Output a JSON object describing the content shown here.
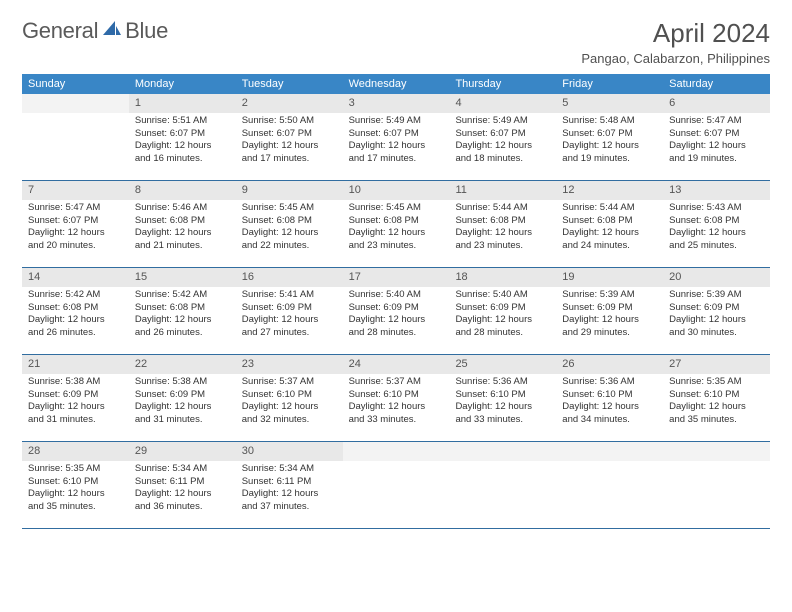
{
  "logo": {
    "word1": "General",
    "word2": "Blue"
  },
  "title": "April 2024",
  "location": "Pangao, Calabarzon, Philippines",
  "colors": {
    "header_bg": "#3986c6",
    "header_text": "#ffffff",
    "daynum_bg": "#e8e8e8",
    "week_border": "#316da0",
    "body_text": "#333333",
    "title_text": "#505050",
    "logo_text": "#5a5a5a",
    "sail_color": "#2f6aa8"
  },
  "fonts": {
    "title_size_pt": 20,
    "location_size_pt": 10,
    "header_size_pt": 8,
    "daynum_size_pt": 8,
    "body_size_pt": 7
  },
  "day_names": [
    "Sunday",
    "Monday",
    "Tuesday",
    "Wednesday",
    "Thursday",
    "Friday",
    "Saturday"
  ],
  "weeks": [
    [
      {
        "n": "",
        "lines": []
      },
      {
        "n": "1",
        "lines": [
          "Sunrise: 5:51 AM",
          "Sunset: 6:07 PM",
          "Daylight: 12 hours and 16 minutes."
        ]
      },
      {
        "n": "2",
        "lines": [
          "Sunrise: 5:50 AM",
          "Sunset: 6:07 PM",
          "Daylight: 12 hours and 17 minutes."
        ]
      },
      {
        "n": "3",
        "lines": [
          "Sunrise: 5:49 AM",
          "Sunset: 6:07 PM",
          "Daylight: 12 hours and 17 minutes."
        ]
      },
      {
        "n": "4",
        "lines": [
          "Sunrise: 5:49 AM",
          "Sunset: 6:07 PM",
          "Daylight: 12 hours and 18 minutes."
        ]
      },
      {
        "n": "5",
        "lines": [
          "Sunrise: 5:48 AM",
          "Sunset: 6:07 PM",
          "Daylight: 12 hours and 19 minutes."
        ]
      },
      {
        "n": "6",
        "lines": [
          "Sunrise: 5:47 AM",
          "Sunset: 6:07 PM",
          "Daylight: 12 hours and 19 minutes."
        ]
      }
    ],
    [
      {
        "n": "7",
        "lines": [
          "Sunrise: 5:47 AM",
          "Sunset: 6:07 PM",
          "Daylight: 12 hours and 20 minutes."
        ]
      },
      {
        "n": "8",
        "lines": [
          "Sunrise: 5:46 AM",
          "Sunset: 6:08 PM",
          "Daylight: 12 hours and 21 minutes."
        ]
      },
      {
        "n": "9",
        "lines": [
          "Sunrise: 5:45 AM",
          "Sunset: 6:08 PM",
          "Daylight: 12 hours and 22 minutes."
        ]
      },
      {
        "n": "10",
        "lines": [
          "Sunrise: 5:45 AM",
          "Sunset: 6:08 PM",
          "Daylight: 12 hours and 23 minutes."
        ]
      },
      {
        "n": "11",
        "lines": [
          "Sunrise: 5:44 AM",
          "Sunset: 6:08 PM",
          "Daylight: 12 hours and 23 minutes."
        ]
      },
      {
        "n": "12",
        "lines": [
          "Sunrise: 5:44 AM",
          "Sunset: 6:08 PM",
          "Daylight: 12 hours and 24 minutes."
        ]
      },
      {
        "n": "13",
        "lines": [
          "Sunrise: 5:43 AM",
          "Sunset: 6:08 PM",
          "Daylight: 12 hours and 25 minutes."
        ]
      }
    ],
    [
      {
        "n": "14",
        "lines": [
          "Sunrise: 5:42 AM",
          "Sunset: 6:08 PM",
          "Daylight: 12 hours and 26 minutes."
        ]
      },
      {
        "n": "15",
        "lines": [
          "Sunrise: 5:42 AM",
          "Sunset: 6:08 PM",
          "Daylight: 12 hours and 26 minutes."
        ]
      },
      {
        "n": "16",
        "lines": [
          "Sunrise: 5:41 AM",
          "Sunset: 6:09 PM",
          "Daylight: 12 hours and 27 minutes."
        ]
      },
      {
        "n": "17",
        "lines": [
          "Sunrise: 5:40 AM",
          "Sunset: 6:09 PM",
          "Daylight: 12 hours and 28 minutes."
        ]
      },
      {
        "n": "18",
        "lines": [
          "Sunrise: 5:40 AM",
          "Sunset: 6:09 PM",
          "Daylight: 12 hours and 28 minutes."
        ]
      },
      {
        "n": "19",
        "lines": [
          "Sunrise: 5:39 AM",
          "Sunset: 6:09 PM",
          "Daylight: 12 hours and 29 minutes."
        ]
      },
      {
        "n": "20",
        "lines": [
          "Sunrise: 5:39 AM",
          "Sunset: 6:09 PM",
          "Daylight: 12 hours and 30 minutes."
        ]
      }
    ],
    [
      {
        "n": "21",
        "lines": [
          "Sunrise: 5:38 AM",
          "Sunset: 6:09 PM",
          "Daylight: 12 hours and 31 minutes."
        ]
      },
      {
        "n": "22",
        "lines": [
          "Sunrise: 5:38 AM",
          "Sunset: 6:09 PM",
          "Daylight: 12 hours and 31 minutes."
        ]
      },
      {
        "n": "23",
        "lines": [
          "Sunrise: 5:37 AM",
          "Sunset: 6:10 PM",
          "Daylight: 12 hours and 32 minutes."
        ]
      },
      {
        "n": "24",
        "lines": [
          "Sunrise: 5:37 AM",
          "Sunset: 6:10 PM",
          "Daylight: 12 hours and 33 minutes."
        ]
      },
      {
        "n": "25",
        "lines": [
          "Sunrise: 5:36 AM",
          "Sunset: 6:10 PM",
          "Daylight: 12 hours and 33 minutes."
        ]
      },
      {
        "n": "26",
        "lines": [
          "Sunrise: 5:36 AM",
          "Sunset: 6:10 PM",
          "Daylight: 12 hours and 34 minutes."
        ]
      },
      {
        "n": "27",
        "lines": [
          "Sunrise: 5:35 AM",
          "Sunset: 6:10 PM",
          "Daylight: 12 hours and 35 minutes."
        ]
      }
    ],
    [
      {
        "n": "28",
        "lines": [
          "Sunrise: 5:35 AM",
          "Sunset: 6:10 PM",
          "Daylight: 12 hours and 35 minutes."
        ]
      },
      {
        "n": "29",
        "lines": [
          "Sunrise: 5:34 AM",
          "Sunset: 6:11 PM",
          "Daylight: 12 hours and 36 minutes."
        ]
      },
      {
        "n": "30",
        "lines": [
          "Sunrise: 5:34 AM",
          "Sunset: 6:11 PM",
          "Daylight: 12 hours and 37 minutes."
        ]
      },
      {
        "n": "",
        "lines": []
      },
      {
        "n": "",
        "lines": []
      },
      {
        "n": "",
        "lines": []
      },
      {
        "n": "",
        "lines": []
      }
    ]
  ]
}
